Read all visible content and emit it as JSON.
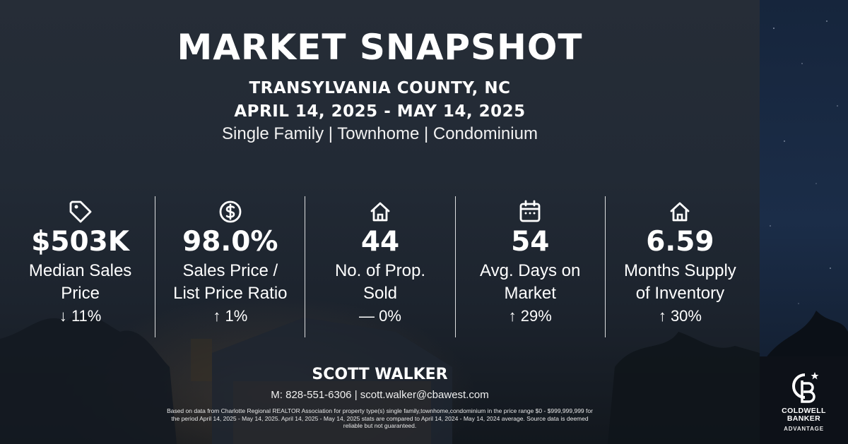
{
  "header": {
    "title": "MARKET SNAPSHOT",
    "location": "TRANSYLVANIA COUNTY, NC",
    "date_range": "APRIL 14, 2025 - MAY 14, 2025",
    "property_types": "Single Family | Townhome | Condominium"
  },
  "stats": [
    {
      "icon": "price-tag-icon",
      "value": "$503K",
      "label_line1": "Median Sales",
      "label_line2": "Price",
      "change": "↓ 11%"
    },
    {
      "icon": "dollar-circle-icon",
      "value": "98.0%",
      "label_line1": "Sales Price /",
      "label_line2": "List Price Ratio",
      "change": "↑ 1%"
    },
    {
      "icon": "house-icon",
      "value": "44",
      "label_line1": "No. of Prop.",
      "label_line2": "Sold",
      "change": "— 0%"
    },
    {
      "icon": "calendar-icon",
      "value": "54",
      "label_line1": "Avg. Days on",
      "label_line2": "Market",
      "change": "↑ 29%"
    },
    {
      "icon": "house-icon",
      "value": "6.59",
      "label_line1": "Months Supply",
      "label_line2": "of Inventory",
      "change": "↑ 30%"
    }
  ],
  "agent": {
    "name": "SCOTT WALKER",
    "contact": "M: 828-551-6306 | scott.walker@cbawest.com"
  },
  "disclaimer": "Based on data from Charlotte Regional REALTOR Association for property type(s) single family,townhome,condominium in the price range $0 - $999,999,999 for the period April 14, 2025 - May 14, 2025. April 14, 2025 - May 14, 2025 stats are compared to April 14, 2024 - May 14, 2024 average. Source data is deemed reliable but not guaranteed.",
  "brand": {
    "line1": "COLDWELL",
    "line2": "BANKER",
    "line3": "ADVANTAGE",
    "accent": "#ffffff",
    "panel_color": "#0d1118"
  }
}
